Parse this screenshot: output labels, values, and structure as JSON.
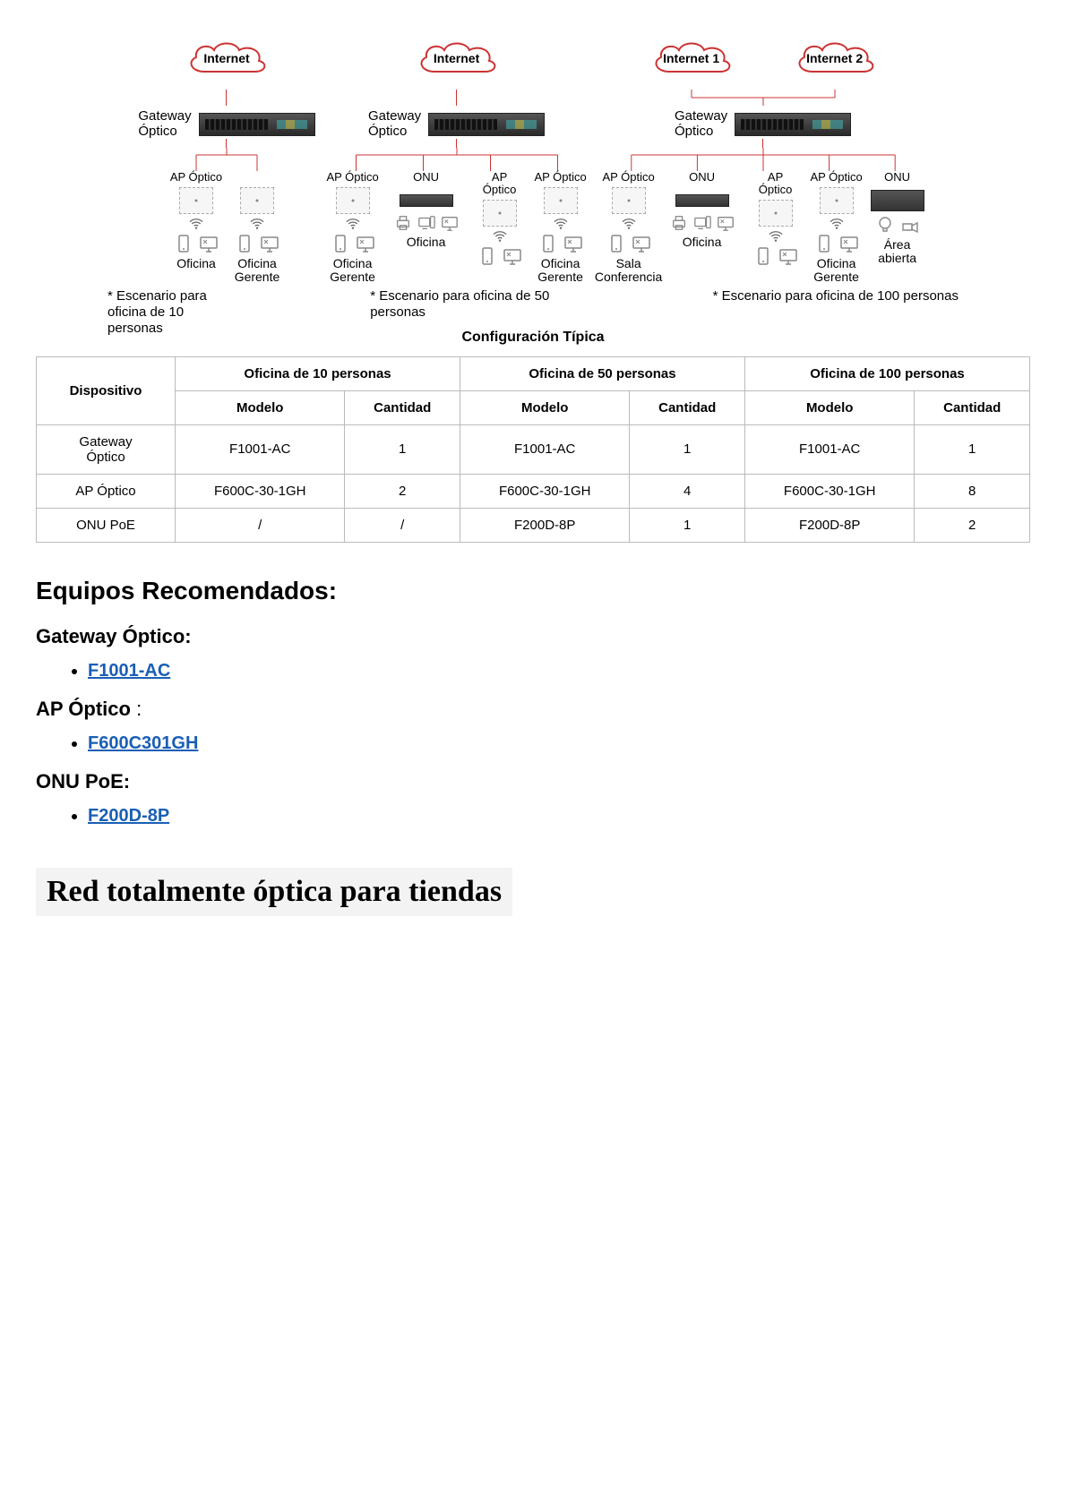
{
  "colors": {
    "cloud_stroke": "#cc3333",
    "connector": "#cc3333",
    "icon_stroke": "#888888",
    "table_border": "#bbbbbb",
    "link": "#1a5fb4",
    "serif_bg": "#f3f3f3"
  },
  "diagram": {
    "scenarios": [
      {
        "id": "scenario-10",
        "clouds": [
          {
            "label": "Internet"
          }
        ],
        "gateway_label": "Gateway\nÓptico",
        "branches": [
          {
            "top_label": "AP Óptico",
            "device": "ap",
            "wifi": true,
            "icons": [
              "phone",
              "monitor"
            ],
            "room": "Oficina"
          },
          {
            "top_label": "",
            "device": "ap",
            "wifi": true,
            "icons": [
              "phone",
              "monitor"
            ],
            "room": "Oficina\nGerente"
          }
        ],
        "caption": "* Escenario para\noficina de 10\npersonas"
      },
      {
        "id": "scenario-50",
        "clouds": [
          {
            "label": "Internet"
          }
        ],
        "gateway_label": "Gateway\nÓptico",
        "branches": [
          {
            "top_label": "AP Óptico",
            "device": "ap",
            "wifi": true,
            "icons": [
              "phone",
              "monitor"
            ],
            "room": "Oficina\nGerente"
          },
          {
            "top_label": "ONU",
            "device": "onu",
            "wifi": false,
            "icons": [
              "printer",
              "pc",
              "monitor"
            ],
            "room": "Oficina"
          },
          {
            "top_label": "AP\nÓptico",
            "device": "ap",
            "wifi": true,
            "icons": [
              "phone",
              "monitor"
            ],
            "room": ""
          },
          {
            "top_label": "AP Óptico",
            "device": "ap",
            "wifi": true,
            "icons": [
              "phone",
              "monitor"
            ],
            "room": "Oficina\nGerente"
          }
        ],
        "caption": "* Escenario para oficina de 50\npersonas"
      },
      {
        "id": "scenario-100",
        "clouds": [
          {
            "label": "Internet   1"
          },
          {
            "label": "Internet   2"
          }
        ],
        "gateway_label": "Gateway\nÓptico",
        "branches": [
          {
            "top_label": "AP Óptico",
            "device": "ap",
            "wifi": true,
            "icons": [
              "phone",
              "monitor"
            ],
            "room": "Sala\nConferencia"
          },
          {
            "top_label": "ONU",
            "device": "onu",
            "wifi": false,
            "icons": [
              "printer",
              "pc",
              "monitor"
            ],
            "room": "Oficina"
          },
          {
            "top_label": "AP\nÓptico",
            "device": "ap",
            "wifi": true,
            "icons": [
              "phone",
              "monitor"
            ],
            "room": ""
          },
          {
            "top_label": "AP Óptico",
            "device": "ap",
            "wifi": true,
            "icons": [
              "phone",
              "monitor"
            ],
            "room": "Oficina\nGerente"
          },
          {
            "top_label": "ONU",
            "device": "onu-big",
            "wifi": false,
            "icons": [
              "bulb",
              "camera"
            ],
            "room": "Área abierta"
          }
        ],
        "caption": "* Escenario para oficina de 100 personas"
      }
    ],
    "config_title": "Configuración Típica"
  },
  "table": {
    "header_device": "Dispositivo",
    "groups": [
      "Oficina de 10 personas",
      "Oficina de 50 personas",
      "Oficina de 100 personas"
    ],
    "subheaders": [
      "Modelo",
      "Cantidad"
    ],
    "rows": [
      {
        "device": "Gateway\nÓptico",
        "cells": [
          "F1001-AC",
          "1",
          "F1001-AC",
          "1",
          "F1001-AC",
          "1"
        ]
      },
      {
        "device": "AP Óptico",
        "cells": [
          "F600C-30-1GH",
          "2",
          "F600C-30-1GH",
          "4",
          "F600C-30-1GH",
          "8"
        ]
      },
      {
        "device": "ONU PoE",
        "cells": [
          "/",
          "/",
          "F200D-8P",
          "1",
          "F200D-8P",
          "2"
        ]
      }
    ]
  },
  "recommended": {
    "heading": "Equipos Recomendados:",
    "groups": [
      {
        "title": "Gateway Óptico:",
        "links": [
          "F1001-AC"
        ]
      },
      {
        "title": "AP Óptico :",
        "links": [
          "F600C301GH"
        ],
        "title_suffix_plain": true
      },
      {
        "title": "ONU PoE:",
        "links": [
          "F200D-8P"
        ]
      }
    ]
  },
  "serif_heading": "Red totalmente óptica para tiendas"
}
